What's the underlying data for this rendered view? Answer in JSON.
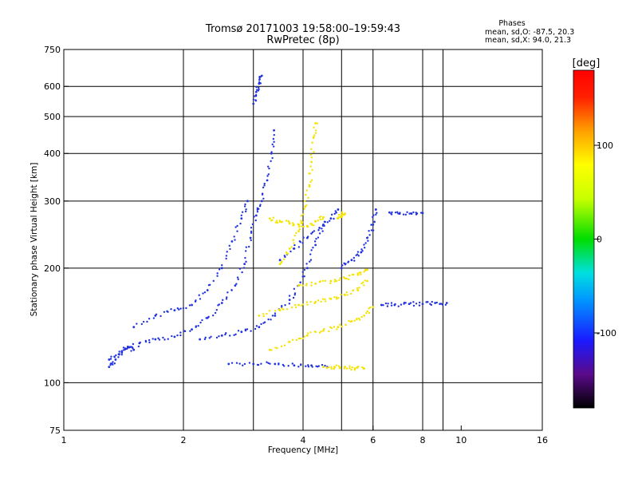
{
  "chart_data": {
    "type": "scatter",
    "title": "Tromsø 20171003 19:58:00–19:59:43",
    "subtitle": "RwPretec (8p)",
    "stats": {
      "heading": "Phases",
      "line_o": "mean, sd,O: -87.5, 20.3",
      "line_x": "mean, sd,X:  94.0, 21.3"
    },
    "xlabel": "Frequency [MHz]",
    "ylabel": "Stationary phase Virtual Height [km]",
    "x_scale": "log",
    "y_scale": "log",
    "xlim": [
      1,
      16
    ],
    "ylim": [
      75,
      750
    ],
    "grid": true,
    "x_ticks": [
      1,
      2,
      4,
      6,
      8,
      10,
      16
    ],
    "x_tick_labels": [
      "1",
      "2",
      "4",
      "6",
      "8",
      "10",
      "16"
    ],
    "y_ticks": [
      75,
      100,
      200,
      300,
      400,
      500,
      600,
      750
    ],
    "y_tick_labels": [
      "75",
      "100",
      "200",
      "300",
      "400",
      "500",
      "600",
      "750"
    ],
    "x_gridlines": [
      2,
      3,
      4,
      5,
      6,
      8,
      9
    ],
    "y_gridlines": [
      100,
      200,
      300,
      400,
      500,
      600
    ],
    "colorbar": {
      "label": "[deg]",
      "range": [
        -180,
        180
      ],
      "ticks": [
        100,
        0,
        -100
      ],
      "tick_labels": [
        "100",
        "0",
        "-100"
      ],
      "colors": [
        "#000000",
        "#5a0a8a",
        "#1a1aff",
        "#0096ff",
        "#00e0e0",
        "#00dd00",
        "#c8ff00",
        "#ffff00",
        "#ffa000",
        "#ff2000",
        "#ff0000"
      ]
    },
    "series": [
      {
        "mode": "O",
        "color": "#2233dd",
        "traces": [
          [
            [
              1.3,
              115
            ],
            [
              1.4,
              120
            ],
            [
              1.55,
              127
            ],
            [
              1.7,
              130
            ],
            [
              1.9,
              132
            ],
            [
              2.1,
              138
            ],
            [
              2.3,
              148
            ],
            [
              2.5,
              162
            ],
            [
              2.7,
              180
            ],
            [
              2.85,
              205
            ],
            [
              2.95,
              240
            ],
            [
              3.05,
              275
            ],
            [
              3.15,
              300
            ],
            [
              3.25,
              340
            ],
            [
              3.33,
              400
            ],
            [
              3.38,
              460
            ]
          ],
          [
            [
              1.5,
              140
            ],
            [
              1.7,
              150
            ],
            [
              1.9,
              155
            ],
            [
              2.1,
              160
            ],
            [
              2.3,
              175
            ],
            [
              2.5,
              200
            ],
            [
              2.65,
              235
            ],
            [
              2.8,
              270
            ],
            [
              2.9,
              300
            ]
          ],
          [
            [
              2.2,
              130
            ],
            [
              2.5,
              133
            ],
            [
              2.8,
              136
            ],
            [
              3.1,
              140
            ],
            [
              3.4,
              150
            ],
            [
              3.7,
              165
            ],
            [
              3.9,
              180
            ],
            [
              4.1,
              200
            ],
            [
              4.3,
              230
            ],
            [
              4.5,
              260
            ]
          ],
          [
            [
              2.6,
              112
            ],
            [
              3.0,
              112
            ],
            [
              3.4,
              112
            ],
            [
              3.8,
              111
            ],
            [
              4.2,
              111
            ],
            [
              4.6,
              110
            ]
          ],
          [
            [
              3.5,
              210
            ],
            [
              3.8,
              225
            ],
            [
              4.1,
              240
            ],
            [
              4.4,
              255
            ],
            [
              4.7,
              270
            ],
            [
              4.9,
              285
            ]
          ],
          [
            [
              3.0,
              540
            ],
            [
              3.05,
              580
            ],
            [
              3.1,
              610
            ],
            [
              3.15,
              640
            ]
          ],
          [
            [
              5.0,
              200
            ],
            [
              5.3,
              210
            ],
            [
              5.6,
              220
            ],
            [
              5.8,
              240
            ],
            [
              6.0,
              260
            ],
            [
              6.1,
              285
            ]
          ],
          [
            [
              6.3,
              160
            ],
            [
              6.8,
              160
            ],
            [
              7.4,
              161
            ],
            [
              8.0,
              161
            ],
            [
              8.6,
              162
            ],
            [
              9.2,
              162
            ]
          ],
          [
            [
              6.6,
              280
            ],
            [
              7.0,
              278
            ],
            [
              7.5,
              278
            ],
            [
              8.0,
              279
            ]
          ],
          [
            [
              1.3,
              110
            ],
            [
              1.35,
              115
            ],
            [
              1.4,
              121
            ],
            [
              1.45,
              124
            ],
            [
              1.5,
              122
            ]
          ]
        ]
      },
      {
        "mode": "X",
        "color": "#f4e400",
        "traces": [
          [
            [
              3.5,
              205
            ],
            [
              3.7,
              225
            ],
            [
              3.9,
              250
            ],
            [
              4.05,
              290
            ],
            [
              4.15,
              330
            ],
            [
              4.2,
              380
            ],
            [
              4.25,
              440
            ],
            [
              4.3,
              480
            ]
          ],
          [
            [
              3.3,
              270
            ],
            [
              3.5,
              265
            ],
            [
              3.7,
              262
            ],
            [
              3.9,
              260
            ],
            [
              4.1,
              258
            ],
            [
              4.3,
              265
            ],
            [
              4.5,
              272
            ]
          ],
          [
            [
              3.1,
              150
            ],
            [
              3.5,
              155
            ],
            [
              3.9,
              160
            ],
            [
              4.3,
              163
            ],
            [
              4.7,
              166
            ],
            [
              5.1,
              170
            ],
            [
              5.5,
              175
            ],
            [
              5.8,
              185
            ]
          ],
          [
            [
              3.3,
              122
            ],
            [
              3.7,
              128
            ],
            [
              4.1,
              133
            ],
            [
              4.5,
              137
            ],
            [
              4.9,
              140
            ],
            [
              5.3,
              145
            ],
            [
              5.7,
              150
            ],
            [
              6.0,
              158
            ]
          ],
          [
            [
              4.5,
              110
            ],
            [
              4.8,
              110
            ],
            [
              5.1,
              110
            ],
            [
              5.4,
              109
            ],
            [
              5.7,
              109
            ]
          ],
          [
            [
              3.9,
              180
            ],
            [
              4.3,
              182
            ],
            [
              4.7,
              185
            ],
            [
              5.1,
              188
            ],
            [
              5.5,
              192
            ],
            [
              5.8,
              198
            ]
          ],
          [
            [
              4.9,
              270
            ],
            [
              5.0,
              275
            ],
            [
              5.1,
              278
            ]
          ]
        ]
      }
    ]
  }
}
